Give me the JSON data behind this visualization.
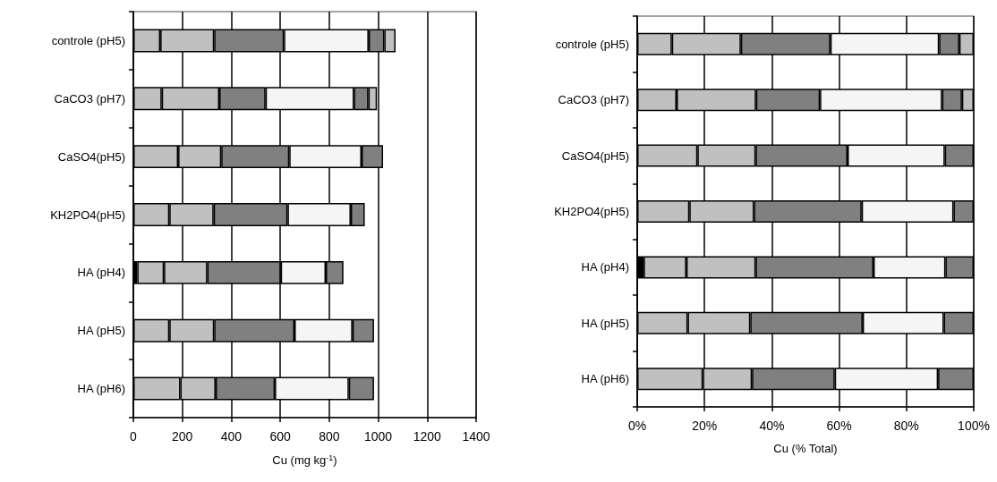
{
  "chart_data": [
    {
      "type": "bar",
      "orientation": "horizontal",
      "stacked": true,
      "xlabel": "Cu (mg kg$^{-1}$)",
      "grid": "x",
      "categories": [
        "controle (pH5)",
        "CaCO3 (pH7)",
        "CaSO4(pH5)",
        "KH2PO4(pH5)",
        "HA (pH4)",
        "HA (pH5)",
        "HA (pH6)"
      ],
      "xlim": [
        0,
        1400
      ],
      "xticks": [
        0,
        200,
        400,
        600,
        800,
        1000,
        1200,
        1400
      ],
      "series": [
        {
          "color": "#000000",
          "values": [
            null,
            null,
            null,
            null,
            16,
            null,
            null
          ]
        },
        {
          "color": "#c0c0c0",
          "values": [
            110,
            116,
            183,
            147,
            109,
            147,
            192
          ]
        },
        {
          "color": "#c0c0c0",
          "values": [
            220,
            235,
            176,
            181,
            177,
            183,
            144
          ]
        },
        {
          "color": "#808080",
          "values": [
            285,
            189,
            278,
            302,
            300,
            328,
            242
          ]
        },
        {
          "color": "#f5f5f5",
          "values": [
            346,
            361,
            295,
            258,
            184,
            237,
            302
          ]
        },
        {
          "color": "#808080",
          "values": [
            64,
            59,
            88,
            57,
            72,
            88,
            103
          ]
        },
        {
          "color": "#c0c0c0",
          "values": [
            46,
            35,
            null,
            null,
            null,
            null,
            null
          ]
        }
      ]
    },
    {
      "type": "bar",
      "orientation": "horizontal",
      "stacked": true,
      "xlabel": "Cu (% Total)",
      "grid": "x",
      "categories": [
        "controle (pH5)",
        "CaCO3 (pH7)",
        "CaSO4(pH5)",
        "KH2PO4(pH5)",
        "HA (pH4)",
        "HA (pH5)",
        "HA (pH6)"
      ],
      "xlim": [
        0,
        100
      ],
      "xticks": [
        {
          "value": 0,
          "label": "0%"
        },
        {
          "value": 20,
          "label": "20%"
        },
        {
          "value": 40,
          "label": "40%"
        },
        {
          "value": 60,
          "label": "60%"
        },
        {
          "value": 80,
          "label": "80%"
        },
        {
          "value": 100,
          "label": "100%"
        }
      ],
      "series": [
        {
          "color": "#000000",
          "values": [
            null,
            null,
            null,
            null,
            1.9,
            null,
            null
          ]
        },
        {
          "color": "#c0c0c0",
          "values": [
            10.3,
            11.7,
            17.9,
            15.5,
            12.7,
            15.0,
            19.5
          ]
        },
        {
          "color": "#c0c0c0",
          "values": [
            20.5,
            23.6,
            17.3,
            19.2,
            20.6,
            18.6,
            14.6
          ]
        },
        {
          "color": "#808080",
          "values": [
            26.6,
            19.0,
            27.3,
            32.0,
            35.0,
            33.4,
            24.6
          ]
        },
        {
          "color": "#f5f5f5",
          "values": [
            32.3,
            36.3,
            28.9,
            27.3,
            21.4,
            24.1,
            30.7
          ]
        },
        {
          "color": "#808080",
          "values": [
            6.0,
            5.9,
            8.6,
            6.0,
            8.4,
            8.9,
            10.6
          ]
        },
        {
          "color": "#c0c0c0",
          "values": [
            4.3,
            3.5,
            null,
            null,
            null,
            null,
            null
          ]
        }
      ]
    }
  ]
}
